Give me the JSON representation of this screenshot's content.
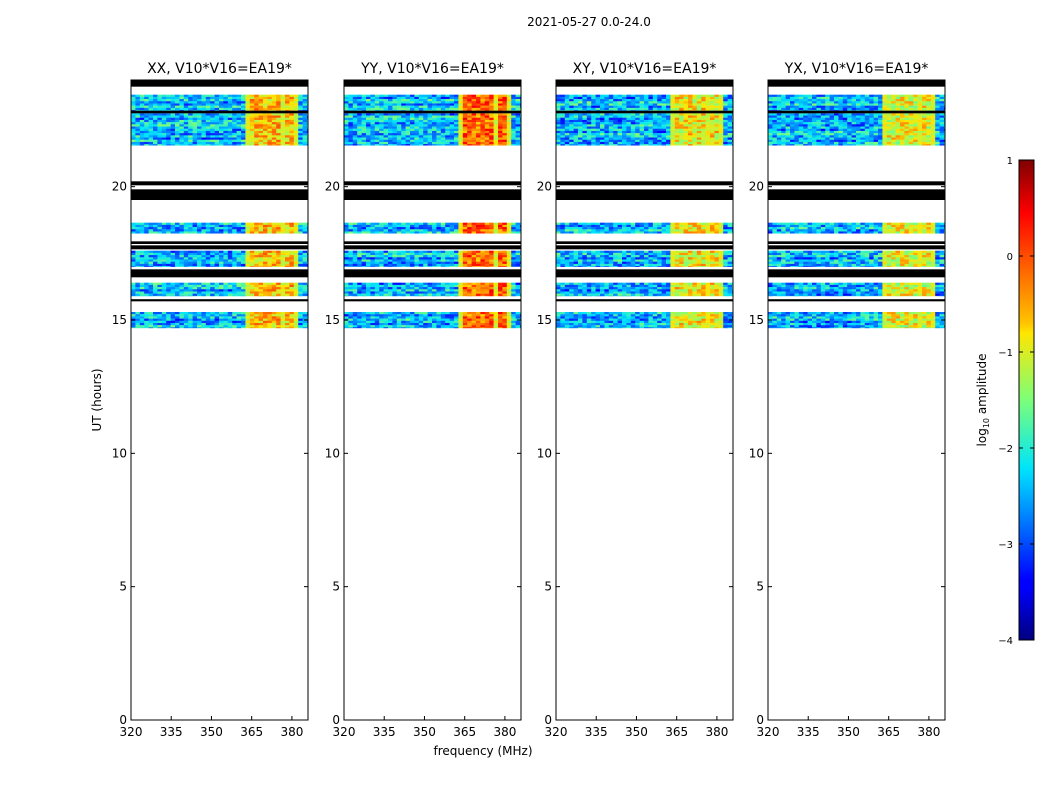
{
  "chart_data": {
    "type": "heatmap",
    "suptitle": "2021-05-27 0.0-24.0",
    "xlabel": "frequency (MHz)",
    "ylabel": "UT (hours)",
    "xlim": [
      320,
      386
    ],
    "ylim": [
      0,
      24
    ],
    "xticks": [
      320,
      335,
      350,
      365,
      380
    ],
    "yticks": [
      0,
      5,
      10,
      15,
      20
    ],
    "panels": [
      {
        "title": "XX, V10*V16=EA19*",
        "hot_level": 0.25
      },
      {
        "title": "YY, V10*V16=EA19*",
        "hot_level": 0.45
      },
      {
        "title": "XY, V10*V16=EA19*",
        "hot_level": 0.15
      },
      {
        "title": "YX, V10*V16=EA19*",
        "hot_level": 0.1
      }
    ],
    "data_bands_ut": [
      [
        22.85,
        23.45
      ],
      [
        21.55,
        22.75
      ],
      [
        18.25,
        18.65
      ],
      [
        17.0,
        17.6
      ],
      [
        15.9,
        16.4
      ],
      [
        14.7,
        15.3
      ]
    ],
    "flagged_bands_ut": [
      [
        23.75,
        24.0
      ],
      [
        22.75,
        22.85
      ],
      [
        20.05,
        20.2
      ],
      [
        19.5,
        19.9
      ],
      [
        17.65,
        17.8
      ],
      [
        17.85,
        17.95
      ],
      [
        16.6,
        16.9
      ],
      [
        15.7,
        15.78
      ]
    ],
    "hot_freq_range_mhz": [
      362,
      381
    ],
    "colorbar": {
      "label": "log10 amplitude",
      "min": -4,
      "max": 1,
      "ticks": [
        1,
        0,
        -1,
        -2,
        -3,
        -4
      ]
    }
  }
}
